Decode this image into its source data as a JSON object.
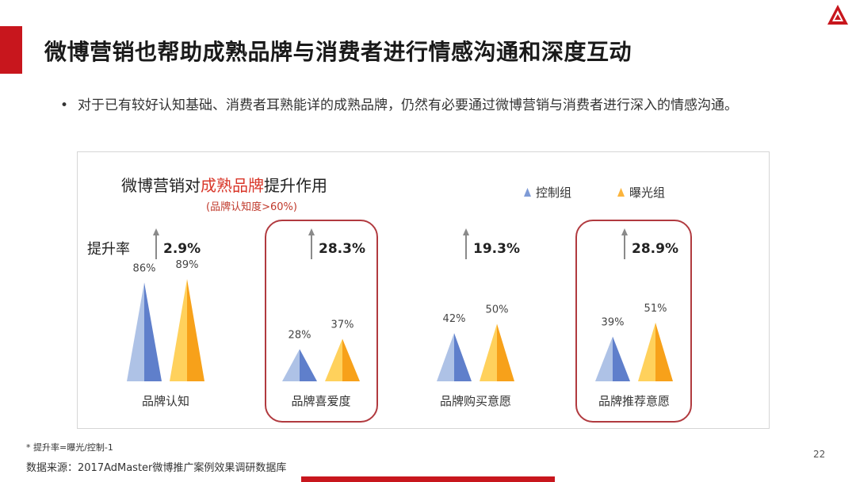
{
  "slide": {
    "title": "微博营销也帮助成熟品牌与消费者进行情感沟通和深度互动",
    "bullet": "对于已有较好认知基础、消费者耳熟能详的成熟品牌，仍然有必要通过微博营销与消费者进行深入的情感沟通。",
    "footnote": "* 提升率=曝光/控制-1",
    "source": "数据来源：2017AdMaster微博推广案例效果调研数据库",
    "page_number": "22",
    "bullet_symbol": "•"
  },
  "colors": {
    "brand_red": "#c8161d",
    "control": "#7f9bd6",
    "exposure": "#fbb43c",
    "highlight_box": "#b13a3f"
  },
  "chart_data": {
    "type": "bar",
    "title_prefix": "微博营销对",
    "title_highlight": "成熟品牌",
    "title_suffix": "提升作用",
    "subtitle": "(品牌认知度>60%)",
    "lift_label": "提升率",
    "categories": [
      "品牌认知",
      "品牌喜爱度",
      "品牌购买意愿",
      "品牌推荐意愿"
    ],
    "series": [
      {
        "name": "控制组",
        "values": [
          86,
          28,
          42,
          39
        ],
        "labels": [
          "86%",
          "28%",
          "42%",
          "39%"
        ]
      },
      {
        "name": "曝光组",
        "values": [
          89,
          37,
          50,
          51
        ],
        "labels": [
          "89%",
          "37%",
          "50%",
          "51%"
        ]
      }
    ],
    "lift": [
      "2.9%",
      "28.3%",
      "19.3%",
      "28.9%"
    ],
    "highlighted_categories": [
      "品牌喜爱度",
      "品牌推荐意愿"
    ],
    "value_unit": "%"
  }
}
